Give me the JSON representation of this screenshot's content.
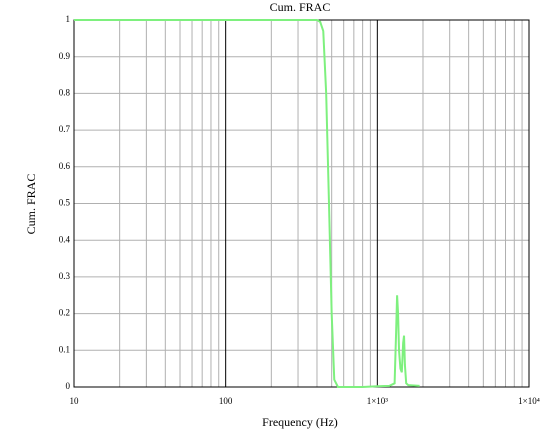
{
  "chart_data": {
    "type": "line",
    "title": "Cum. FRAC",
    "x_label": "Frequency (Hz)",
    "y_label": "Cum. FRAC",
    "x": [
      10,
      100,
      300,
      400,
      420,
      440,
      460,
      480,
      500,
      520,
      550,
      700,
      800,
      1000,
      1200,
      1300,
      1330,
      1350,
      1370,
      1390,
      1420,
      1450,
      1480,
      1500,
      1520,
      1550,
      1600,
      1900
    ],
    "series": [
      {
        "color": "#7ef07e",
        "values": [
          1,
          1,
          1,
          1,
          0.995,
          0.97,
          0.8,
          0.5,
          0.2,
          0.02,
          0,
          0,
          0,
          0.002,
          0.003,
          0.01,
          0.15,
          0.25,
          0.2,
          0.1,
          0.05,
          0.04,
          0.12,
          0.14,
          0.06,
          0.01,
          0.005,
          0.003
        ]
      }
    ],
    "x_log": true,
    "xlim": [
      10,
      10000
    ],
    "xticks": [
      10,
      100,
      {
        "value": 1000,
        "label": "1×10³"
      },
      {
        "value": 10000,
        "label": "1×10⁴"
      }
    ],
    "x_minor_ticks": [
      20,
      30,
      40,
      50,
      60,
      70,
      80,
      90,
      200,
      300,
      400,
      500,
      600,
      700,
      800,
      900,
      2000,
      3000,
      4000,
      5000,
      6000,
      7000,
      8000,
      9000
    ],
    "ylim": [
      0,
      1
    ],
    "yticks": [
      0,
      0.1,
      0.2,
      0.3,
      0.4,
      0.5,
      0.6,
      0.7,
      0.8,
      0.9,
      1
    ],
    "grid": true
  }
}
